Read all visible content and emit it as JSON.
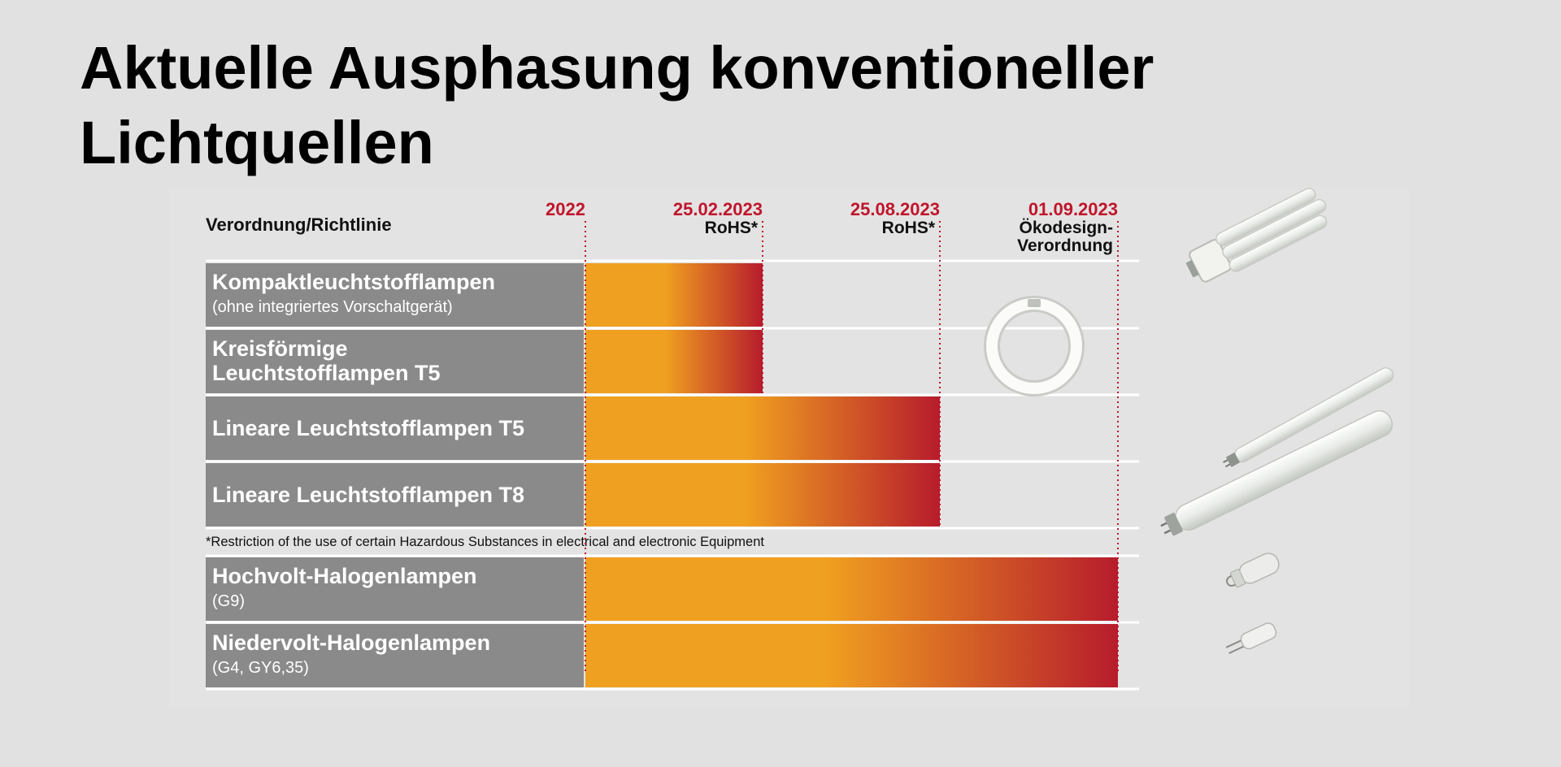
{
  "page": {
    "title_line1": "Aktuelle Ausphasung konventioneller",
    "title_line2": "Lichtquellen"
  },
  "colors": {
    "bar_start": "#f0a020",
    "bar_end": "#b71c2c",
    "label_box": "#8a8a8a",
    "date_red": "#c0152b"
  },
  "chart_data": {
    "type": "bar",
    "orientation": "horizontal-timeline",
    "header_label": "Verordnung/Richtlinie",
    "milestones": [
      {
        "date": "2022",
        "note": ""
      },
      {
        "date": "25.02.2023",
        "note": "RoHS*"
      },
      {
        "date": "25.08.2023",
        "note": "RoHS*"
      },
      {
        "date": "01.09.2023",
        "note": "Ökodesign-\nVerordnung"
      }
    ],
    "rows": [
      {
        "title": "Kompaktleuchtstofflampen",
        "subtitle": "(ohne integriertes Vorschaltgerät)",
        "end": "25.02.2023"
      },
      {
        "title": "Kreisförmige\nLeuchtstofflampen T5",
        "subtitle": "",
        "end": "25.02.2023"
      },
      {
        "title": "Lineare Leuchtstofflampen T5",
        "subtitle": "",
        "end": "25.08.2023"
      },
      {
        "title": "Lineare Leuchtstofflampen T8",
        "subtitle": "",
        "end": "25.08.2023"
      },
      {
        "footnote": "*Restriction of the use of certain Hazardous Substances in electrical and electronic Equipment"
      },
      {
        "title": "Hochvolt-Halogenlampen",
        "subtitle": "(G9)",
        "end": "01.09.2023"
      },
      {
        "title": "Niedervolt-Halogenlampen",
        "subtitle": "(G4, GY6,35)",
        "end": "01.09.2023"
      }
    ]
  }
}
